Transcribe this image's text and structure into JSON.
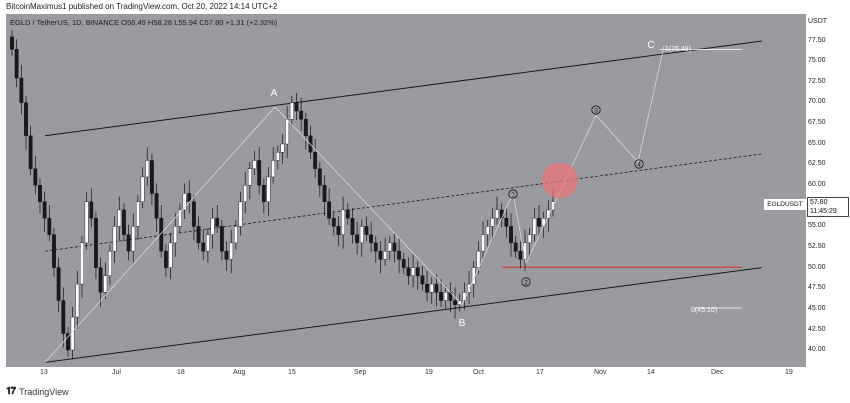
{
  "header": {
    "text": "BitcoinMaximus1 published on TradingView.com, Oct 20, 2022 14:14 UTC+2"
  },
  "legend": {
    "symbol": "EGLD / TetherUS, 1D, BINANCE",
    "open_label": "O",
    "open": "56.49",
    "high_label": "H",
    "high": "58.28",
    "low_label": "L",
    "low": "55.94",
    "close_label": "C",
    "close": "57.80",
    "change": "+1.31 (+2.32%)"
  },
  "price_axis": {
    "currency": "USDT",
    "ticks": [
      "77.50",
      "75.00",
      "72.50",
      "70.00",
      "67.50",
      "65.00",
      "62.50",
      "60.00",
      "57.50",
      "55.00",
      "52.50",
      "50.00",
      "47.50",
      "45.00",
      "42.50",
      "40.00"
    ]
  },
  "current_price": {
    "symbol": "EGLDUSDT",
    "value": "57.80",
    "countdown": "11:45:29"
  },
  "time_axis": {
    "ticks": [
      "13",
      "Jul",
      "18",
      "Aug",
      "15",
      "Sep",
      "19",
      "Oct",
      "17",
      "Nov",
      "14",
      "Dec",
      "19"
    ]
  },
  "annotations": {
    "wave_a": "A",
    "wave_b": "B",
    "wave_c": "C",
    "wave_1": "1",
    "wave_2": "2",
    "wave_3": "3",
    "wave_4": "4",
    "target_c": "1(76.48)",
    "target_low": "0(45.10)"
  },
  "colors": {
    "chart_bg": "#9a9ba1",
    "support_line": "#e0332d",
    "target_circle": "#e8757a",
    "candle_up": "#ffffff",
    "candle_down": "#1a1a1a"
  },
  "footer": {
    "brand": "TradingView"
  }
}
